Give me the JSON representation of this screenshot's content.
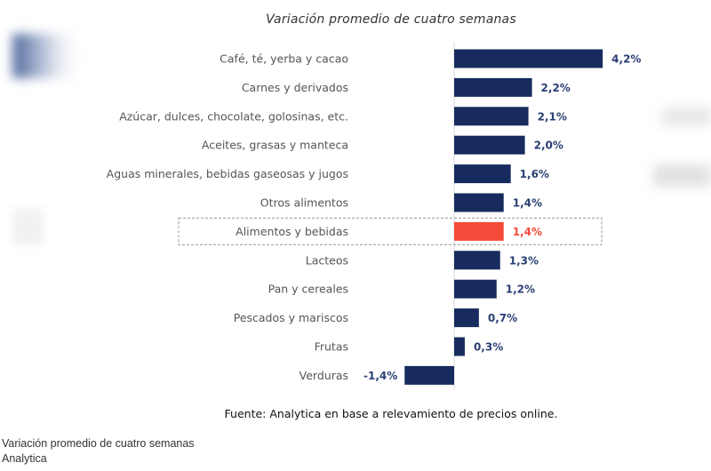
{
  "chart_data": {
    "type": "bar",
    "orientation": "horizontal",
    "title": "Variación promedio de cuatro semanas",
    "categories": [
      "Café, té, yerba y cacao",
      "Carnes y derivados",
      "Azúcar, dulces, chocolate, golosinas, etc.",
      "Aceites, grasas y manteca",
      "Aguas minerales, bebidas gaseosas y jugos",
      "Otros alimentos",
      "Alimentos y bebidas",
      "Lacteos",
      "Pan y cereales",
      "Pescados y mariscos",
      "Frutas",
      "Verduras"
    ],
    "values": [
      4.2,
      2.2,
      2.1,
      2.0,
      1.6,
      1.4,
      1.4,
      1.3,
      1.2,
      0.7,
      0.3,
      -1.4
    ],
    "value_labels": [
      "4,2%",
      "2,2%",
      "2,1%",
      "2,0%",
      "1,6%",
      "1,4%",
      "1,4%",
      "1,3%",
      "1,2%",
      "0,7%",
      "0,3%",
      "-1,4%"
    ],
    "highlight_index": 6,
    "xlabel": "",
    "ylabel": "",
    "xlim": [
      -1.4,
      4.2
    ],
    "grid": false,
    "legend": "none",
    "colors": {
      "bar": "#172b5e",
      "highlight": "#f44b3a",
      "label": "#2a3f73",
      "highlight_label": "#f44b3a",
      "category": "#555555",
      "zero_line": "#d8d8d8",
      "box": "#9a9a9a"
    },
    "source": "Fuente: Analytica en base a relevamiento de precios online."
  },
  "caption": {
    "line1": "Variación promedio de cuatro semanas",
    "line2": "Analytica"
  }
}
